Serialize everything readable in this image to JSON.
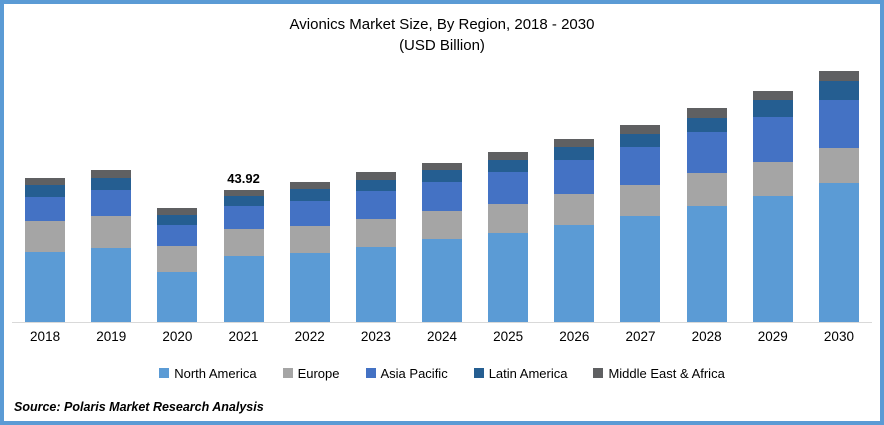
{
  "title": {
    "line1": "Avionics Market Size, By Region, 2018 - 2030",
    "line2": "(USD Billion)"
  },
  "source": {
    "text": "Source: Polaris Market Research Analysis"
  },
  "frame_border_color": "#5B9BD5",
  "axis_line_color": "#D9D9D9",
  "chart_data": {
    "type": "bar",
    "stacked": true,
    "title": "Avionics Market Size, By Region, 2018 - 2030 (USD Billion)",
    "xlabel": "",
    "ylabel": "USD Billion",
    "ylim": [
      0,
      85
    ],
    "grid": false,
    "y_axis_visible": false,
    "legend_position": "bottom",
    "categories": [
      "2018",
      "2019",
      "2020",
      "2021",
      "2022",
      "2023",
      "2024",
      "2025",
      "2026",
      "2027",
      "2028",
      "2029",
      "2030"
    ],
    "series": [
      {
        "name": "North America",
        "color": "#5B9BD5",
        "values": [
          23.4,
          24.7,
          16.6,
          21.9,
          23.1,
          24.9,
          27.6,
          29.5,
          32.3,
          35.1,
          38.4,
          41.9,
          46.1
        ]
      },
      {
        "name": "Europe",
        "color": "#A5A5A5",
        "values": [
          10.1,
          10.5,
          8.5,
          9.1,
          8.9,
          9.4,
          9.2,
          9.7,
          10.1,
          10.4,
          11.0,
          11.3,
          11.7
        ]
      },
      {
        "name": "Asia Pacific",
        "color": "#4472C4",
        "values": [
          7.9,
          8.6,
          7.2,
          7.5,
          8.3,
          9.1,
          9.6,
          10.5,
          11.3,
          12.6,
          13.6,
          14.8,
          15.9
        ]
      },
      {
        "name": "Latin America",
        "color": "#255E91",
        "values": [
          4.2,
          4.0,
          3.4,
          3.5,
          3.9,
          3.7,
          4.2,
          4.3,
          4.4,
          4.4,
          4.8,
          5.9,
          6.5
        ]
      },
      {
        "name": "Middle East & Africa",
        "color": "#5F6062",
        "values": [
          2.4,
          2.6,
          2.2,
          1.92,
          2.2,
          2.8,
          2.4,
          2.5,
          2.9,
          3.1,
          3.2,
          2.8,
          3.1
        ]
      }
    ],
    "totals": [
      48.0,
      50.4,
      37.9,
      43.92,
      46.4,
      49.9,
      53.0,
      56.5,
      61.0,
      65.6,
      71.0,
      76.7,
      83.3
    ],
    "data_labels": [
      {
        "category": "2021",
        "text": "43.92"
      }
    ]
  }
}
